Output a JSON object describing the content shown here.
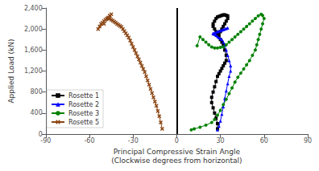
{
  "chart_data": {
    "type": "line",
    "xlabel": "Principal Compressive Strain Angle\n(Clockwise degrees from horizontal)",
    "ylabel": "Applied Load (kN)",
    "xlim": [
      -90,
      90
    ],
    "ylim": [
      0,
      2400
    ],
    "xticks": [
      -90,
      -60,
      -30,
      0,
      30,
      60,
      90
    ],
    "yticks": [
      0,
      400,
      800,
      1200,
      1600,
      2000,
      2400
    ],
    "grid": false,
    "legend": "lower left",
    "vlines": [
      0
    ],
    "series": [
      {
        "name": "Rosette 1",
        "color": "#000000",
        "marker": "square",
        "x": [
          28,
          28,
          27,
          26,
          25,
          24,
          24,
          25,
          26,
          27,
          28,
          29,
          30,
          31,
          32,
          33,
          34,
          34,
          33,
          32,
          31,
          30,
          29,
          28,
          27,
          26,
          25,
          25,
          26,
          27,
          28,
          29,
          30,
          31,
          32,
          33,
          34,
          35,
          35,
          34,
          33,
          32,
          31,
          30,
          29
        ],
        "values": [
          100,
          200,
          300,
          400,
          500,
          600,
          700,
          800,
          900,
          1000,
          1100,
          1150,
          1200,
          1250,
          1300,
          1350,
          1400,
          1500,
          1600,
          1700,
          1750,
          1800,
          1850,
          1900,
          1950,
          2000,
          2050,
          2100,
          2150,
          2200,
          2230,
          2240,
          2250,
          2260,
          2270,
          2270,
          2260,
          2250,
          2200,
          2150,
          2100,
          2050,
          2000,
          1950,
          1900
        ]
      },
      {
        "name": "Rosette 2",
        "color": "#0000ff",
        "marker": "triangle",
        "x": [
          28,
          29,
          30,
          31,
          32,
          33,
          34,
          35,
          36,
          37,
          37,
          36,
          35,
          34,
          33,
          32,
          31,
          30,
          29,
          28,
          27,
          26,
          25,
          25,
          26,
          27,
          28,
          29,
          30,
          31,
          32,
          33,
          34,
          35
        ],
        "values": [
          80,
          150,
          250,
          380,
          520,
          680,
          820,
          960,
          1100,
          1200,
          1300,
          1400,
          1500,
          1600,
          1700,
          1750,
          1800,
          1820,
          1840,
          1860,
          1880,
          1900,
          1910,
          1920,
          1930,
          1940,
          1950,
          1960,
          1970,
          1980,
          1990,
          2000,
          2010,
          2020
        ]
      },
      {
        "name": "Rosette 3",
        "color": "#008000",
        "marker": "circle",
        "x": [
          10,
          12,
          16,
          20,
          24,
          26,
          28,
          30,
          32,
          34,
          36,
          38,
          40,
          42,
          44,
          46,
          48,
          50,
          52,
          54,
          55,
          56,
          57,
          58,
          59,
          60,
          59,
          58,
          56,
          54,
          52,
          50,
          48,
          46,
          44,
          42,
          40,
          38,
          36,
          34,
          32,
          30,
          28,
          26,
          24,
          22,
          20,
          18,
          16,
          14
        ],
        "values": [
          80,
          100,
          130,
          170,
          220,
          280,
          360,
          450,
          560,
          660,
          770,
          880,
          990,
          1080,
          1160,
          1240,
          1320,
          1400,
          1500,
          1600,
          1700,
          1800,
          1900,
          2000,
          2100,
          2200,
          2260,
          2280,
          2250,
          2200,
          2150,
          2100,
          2050,
          2000,
          1950,
          1900,
          1850,
          1800,
          1750,
          1700,
          1660,
          1650,
          1640,
          1640,
          1660,
          1700,
          1750,
          1800,
          1850,
          1680
        ]
      },
      {
        "name": "Rosette 5",
        "color": "#8B4513",
        "marker": "x",
        "x": [
          -47,
          -46,
          -45,
          -46,
          -47,
          -48,
          -49,
          -50,
          -51,
          -52,
          -53,
          -54,
          -50,
          -46,
          -45,
          -44,
          -43,
          -42,
          -41,
          -40,
          -39,
          -38,
          -37,
          -36,
          -35,
          -34,
          -33,
          -32,
          -31,
          -30,
          -29,
          -28,
          -27,
          -26,
          -25,
          -24,
          -23,
          -22,
          -21,
          -20,
          -19,
          -18,
          -17,
          -16,
          -15,
          -14,
          -13,
          -12,
          -11,
          -10
        ],
        "values": [
          2200,
          2250,
          2280,
          2250,
          2220,
          2200,
          2180,
          2150,
          2120,
          2100,
          2050,
          2000,
          2100,
          2200,
          2180,
          2160,
          2140,
          2120,
          2100,
          2080,
          2060,
          2040,
          2000,
          1960,
          1920,
          1880,
          1840,
          1780,
          1720,
          1660,
          1600,
          1540,
          1480,
          1420,
          1360,
          1300,
          1240,
          1180,
          1100,
          1020,
          940,
          860,
          780,
          700,
          620,
          540,
          440,
          340,
          220,
          100
        ]
      }
    ]
  }
}
